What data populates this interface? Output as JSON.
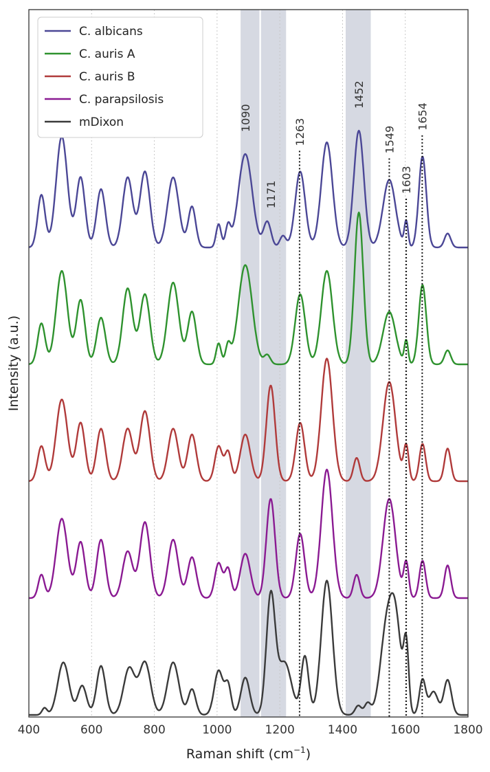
{
  "chart_data": {
    "type": "line",
    "xlabel": "Raman shift (cm",
    "xlabel_sup": "−1",
    "xlabel_close": ")",
    "ylabel": "Intensity (a.u.)",
    "xlim": [
      400,
      1800
    ],
    "x_ticks": [
      400,
      600,
      800,
      1000,
      1200,
      1400,
      1600,
      1800
    ],
    "x_tick_labels": [
      "400",
      "600",
      "800",
      "1000",
      "1200",
      "1400",
      "1600",
      "1800"
    ],
    "grid": "vertical dotted",
    "shaded_bands": [
      [
        1075,
        1135
      ],
      [
        1140,
        1220
      ],
      [
        1410,
        1490
      ]
    ],
    "peak_markers": [
      {
        "x": 1090,
        "label": "1090",
        "dotted": false
      },
      {
        "x": 1171,
        "label": "1171",
        "dotted": false
      },
      {
        "x": 1263,
        "label": "1263",
        "dotted": true
      },
      {
        "x": 1452,
        "label": "1452",
        "dotted": false
      },
      {
        "x": 1549,
        "label": "1549",
        "dotted": true
      },
      {
        "x": 1603,
        "label": "1603",
        "dotted": true
      },
      {
        "x": 1654,
        "label": "1654",
        "dotted": true
      }
    ],
    "legend_position": "top-left",
    "series": [
      {
        "name": "C. albicans",
        "color": "#4b4796",
        "offset": 4.0,
        "peaks": [
          [
            440,
            0.45,
            12
          ],
          [
            505,
            0.95,
            18
          ],
          [
            565,
            0.6,
            14
          ],
          [
            630,
            0.5,
            14
          ],
          [
            715,
            0.6,
            16
          ],
          [
            770,
            0.65,
            16
          ],
          [
            860,
            0.6,
            18
          ],
          [
            920,
            0.35,
            12
          ],
          [
            1005,
            0.2,
            8
          ],
          [
            1035,
            0.18,
            8
          ],
          [
            1090,
            0.8,
            22
          ],
          [
            1160,
            0.22,
            12
          ],
          [
            1210,
            0.1,
            10
          ],
          [
            1265,
            0.65,
            16
          ],
          [
            1350,
            0.9,
            18
          ],
          [
            1452,
            1.0,
            16
          ],
          [
            1549,
            0.58,
            20
          ],
          [
            1603,
            0.22,
            6
          ],
          [
            1655,
            0.78,
            12
          ],
          [
            1735,
            0.12,
            10
          ]
        ]
      },
      {
        "name": "C. auris A",
        "color": "#2e922e",
        "offset": 3.0,
        "peaks": [
          [
            440,
            0.35,
            12
          ],
          [
            505,
            0.8,
            18
          ],
          [
            565,
            0.55,
            14
          ],
          [
            630,
            0.4,
            14
          ],
          [
            715,
            0.65,
            16
          ],
          [
            770,
            0.6,
            16
          ],
          [
            860,
            0.7,
            18
          ],
          [
            920,
            0.45,
            14
          ],
          [
            1005,
            0.18,
            8
          ],
          [
            1035,
            0.16,
            8
          ],
          [
            1090,
            0.85,
            22
          ],
          [
            1160,
            0.08,
            10
          ],
          [
            1265,
            0.6,
            16
          ],
          [
            1350,
            0.8,
            18
          ],
          [
            1452,
            1.3,
            14
          ],
          [
            1549,
            0.45,
            20
          ],
          [
            1603,
            0.2,
            6
          ],
          [
            1655,
            0.68,
            12
          ],
          [
            1735,
            0.12,
            10
          ]
        ]
      },
      {
        "name": "C. auris B",
        "color": "#b03a3a",
        "offset": 2.0,
        "peaks": [
          [
            440,
            0.3,
            12
          ],
          [
            505,
            0.7,
            18
          ],
          [
            565,
            0.5,
            14
          ],
          [
            630,
            0.45,
            14
          ],
          [
            715,
            0.45,
            16
          ],
          [
            770,
            0.6,
            16
          ],
          [
            860,
            0.45,
            16
          ],
          [
            920,
            0.4,
            14
          ],
          [
            1005,
            0.3,
            12
          ],
          [
            1035,
            0.25,
            10
          ],
          [
            1090,
            0.4,
            16
          ],
          [
            1171,
            0.82,
            14
          ],
          [
            1265,
            0.5,
            14
          ],
          [
            1350,
            1.05,
            18
          ],
          [
            1445,
            0.2,
            10
          ],
          [
            1549,
            0.85,
            20
          ],
          [
            1603,
            0.3,
            8
          ],
          [
            1655,
            0.32,
            10
          ],
          [
            1735,
            0.28,
            10
          ]
        ]
      },
      {
        "name": "C. parapsilosis",
        "color": "#8a1a92",
        "offset": 1.0,
        "peaks": [
          [
            440,
            0.2,
            10
          ],
          [
            505,
            0.68,
            18
          ],
          [
            565,
            0.48,
            14
          ],
          [
            630,
            0.5,
            14
          ],
          [
            715,
            0.4,
            16
          ],
          [
            770,
            0.65,
            16
          ],
          [
            860,
            0.5,
            16
          ],
          [
            920,
            0.35,
            14
          ],
          [
            1005,
            0.3,
            12
          ],
          [
            1035,
            0.25,
            10
          ],
          [
            1090,
            0.38,
            16
          ],
          [
            1171,
            0.85,
            14
          ],
          [
            1265,
            0.55,
            14
          ],
          [
            1350,
            1.1,
            18
          ],
          [
            1445,
            0.2,
            10
          ],
          [
            1549,
            0.85,
            20
          ],
          [
            1603,
            0.3,
            8
          ],
          [
            1655,
            0.32,
            10
          ],
          [
            1735,
            0.28,
            10
          ]
        ]
      },
      {
        "name": "mDixon",
        "color": "#3a3a3a",
        "offset": 0.0,
        "peaks": [
          [
            450,
            0.06,
            8
          ],
          [
            510,
            0.45,
            18
          ],
          [
            570,
            0.25,
            14
          ],
          [
            630,
            0.42,
            14
          ],
          [
            720,
            0.4,
            18
          ],
          [
            770,
            0.45,
            18
          ],
          [
            860,
            0.45,
            18
          ],
          [
            920,
            0.22,
            12
          ],
          [
            1005,
            0.38,
            14
          ],
          [
            1035,
            0.25,
            10
          ],
          [
            1090,
            0.32,
            14
          ],
          [
            1171,
            1.0,
            14
          ],
          [
            1215,
            0.45,
            22
          ],
          [
            1280,
            0.5,
            12
          ],
          [
            1350,
            1.15,
            18
          ],
          [
            1450,
            0.08,
            10
          ],
          [
            1480,
            0.1,
            10
          ],
          [
            1540,
            0.7,
            20
          ],
          [
            1570,
            0.72,
            18
          ],
          [
            1603,
            0.55,
            8
          ],
          [
            1655,
            0.3,
            10
          ],
          [
            1690,
            0.2,
            14
          ],
          [
            1735,
            0.3,
            12
          ]
        ]
      }
    ]
  }
}
